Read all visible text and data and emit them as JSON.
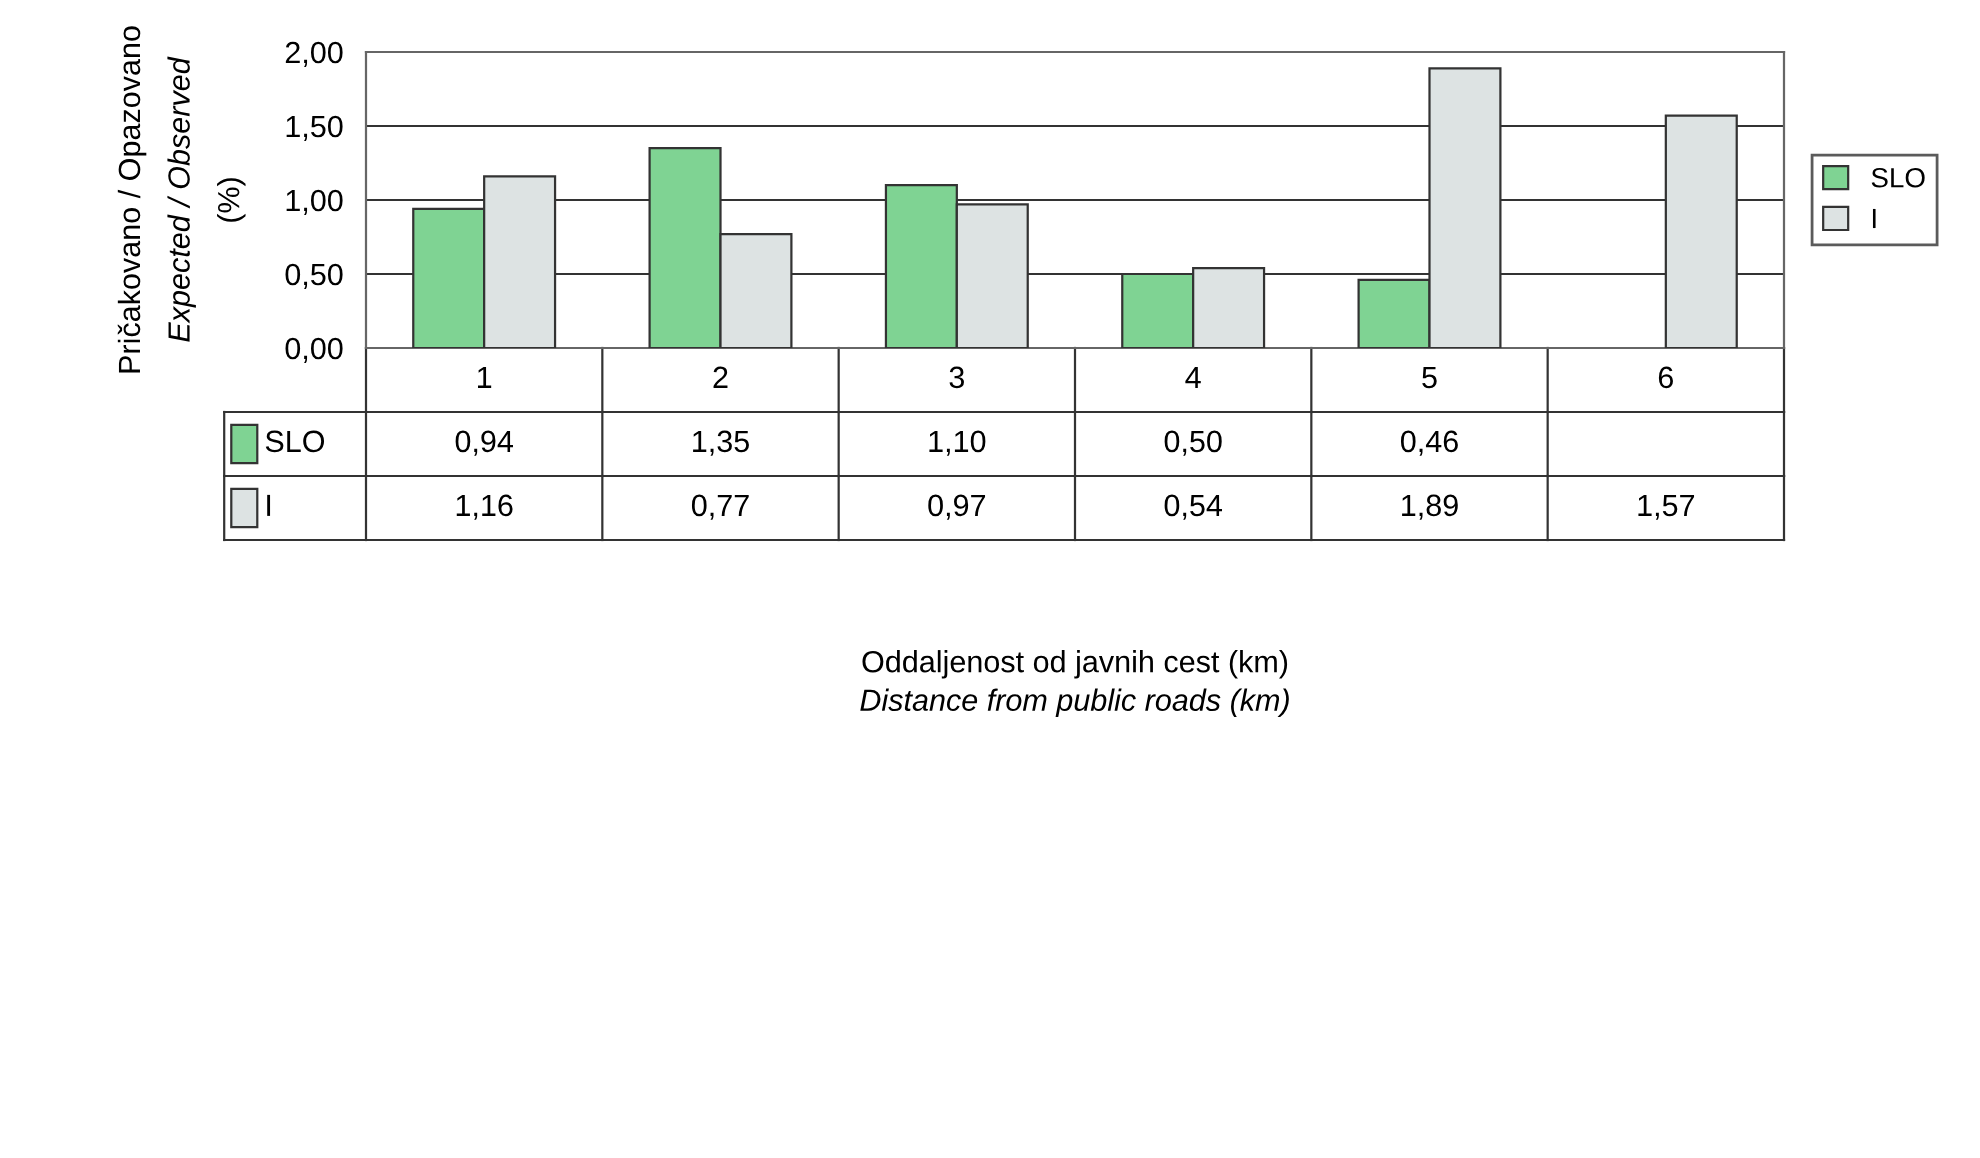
{
  "chart_data": {
    "type": "bar",
    "categories": [
      "1",
      "2",
      "3",
      "4",
      "5",
      "6"
    ],
    "series": [
      {
        "name": "SLO",
        "color": "#7fd393",
        "values": [
          0.94,
          1.35,
          1.1,
          0.5,
          0.46,
          null
        ],
        "value_labels": [
          "0,94",
          "1,35",
          "1,10",
          "0,50",
          "0,46",
          null
        ]
      },
      {
        "name": "I",
        "color": "#dde3e3",
        "values": [
          1.16,
          0.77,
          0.97,
          0.54,
          1.89,
          1.57
        ],
        "value_labels": [
          "1,16",
          "0,77",
          "0,97",
          "0,54",
          "1,89",
          "1,57"
        ]
      }
    ],
    "ylim": [
      0,
      2
    ],
    "yticks": [
      {
        "value": 0,
        "label": "0,00"
      },
      {
        "value": 0.5,
        "label": "0,50"
      },
      {
        "value": 1,
        "label": "1,00"
      },
      {
        "value": 1.5,
        "label": "1,50"
      },
      {
        "value": 2,
        "label": "2,00"
      }
    ],
    "ylabel": "Pričakovano / Opazovano\nExpected / Observed\n(%)",
    "annotations": [
      "Oddaljenost od javnih cest (km)",
      "Distance from public roads (km)"
    ],
    "grid": "y",
    "legend": "right",
    "tick_labels": "y"
  }
}
